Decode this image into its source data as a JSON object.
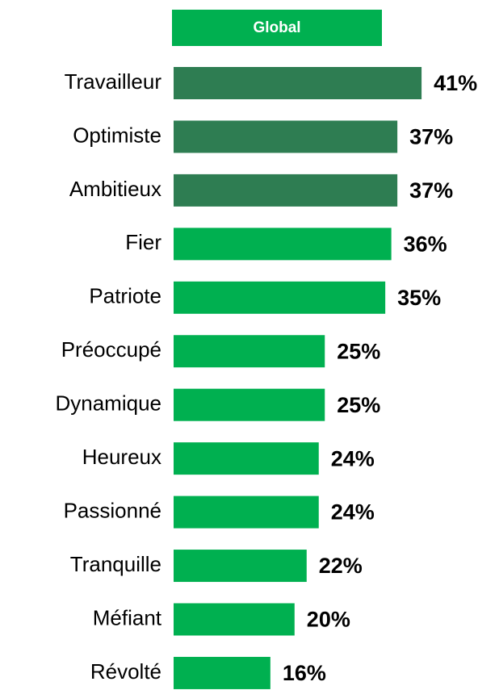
{
  "chart_data": {
    "type": "bar",
    "orientation": "horizontal",
    "title": "Global",
    "categories": [
      "Travailleur",
      "Optimiste",
      "Ambitieux",
      "Fier",
      "Patriote",
      "Préoccupé",
      "Dynamique",
      "Heureux",
      "Passionné",
      "Tranquille",
      "Méfiant",
      "Révolté"
    ],
    "values": [
      41,
      37,
      37,
      36,
      35,
      25,
      25,
      24,
      24,
      22,
      20,
      16
    ],
    "value_labels": [
      "41%",
      "37%",
      "37%",
      "36%",
      "35%",
      "25%",
      "25%",
      "24%",
      "24%",
      "22%",
      "20%",
      "16%"
    ],
    "colors": [
      "#2e7d52",
      "#2e7d52",
      "#2e7d52",
      "#00b050",
      "#00b050",
      "#00b050",
      "#00b050",
      "#00b050",
      "#00b050",
      "#00b050",
      "#00b050",
      "#00b050"
    ],
    "title_color": "#00b050"
  }
}
